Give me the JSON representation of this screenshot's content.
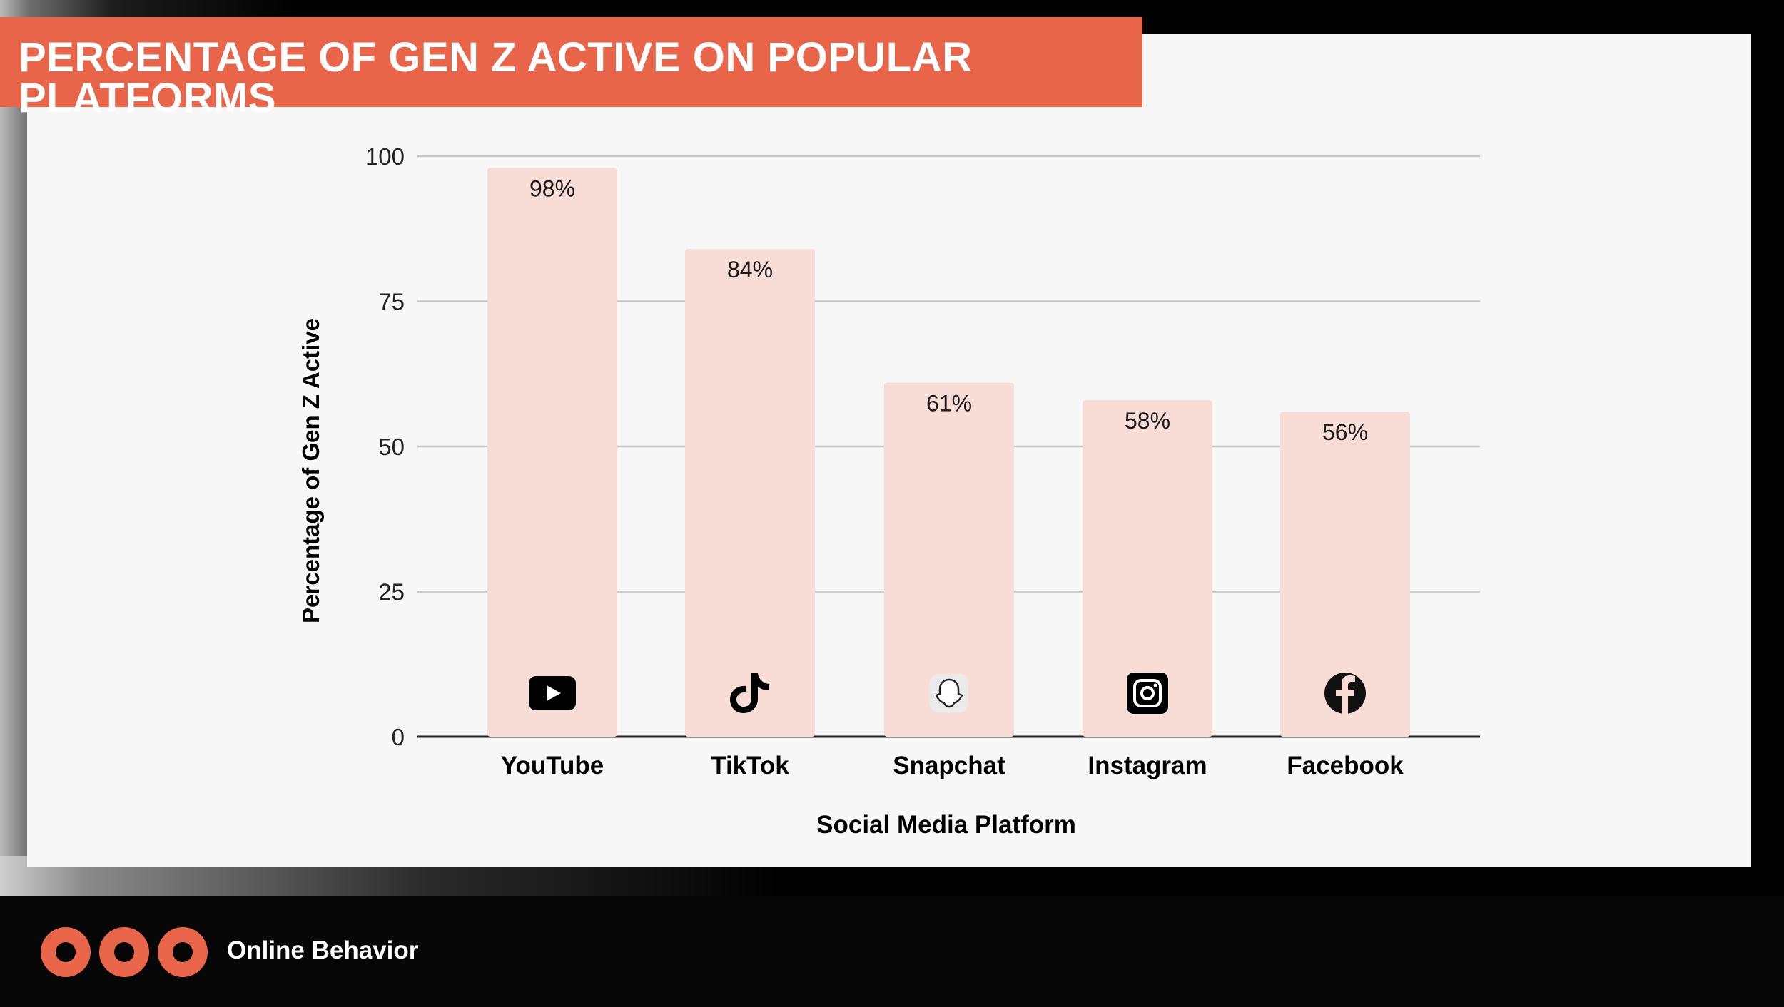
{
  "slide": {
    "title": "PERCENTAGE OF GEN Z ACTIVE ON POPULAR PLATFORMS",
    "footer_label": "Online Behavior",
    "accent_color": "#e8654a"
  },
  "chart_data": {
    "type": "bar",
    "categories": [
      "YouTube",
      "TikTok",
      "Snapchat",
      "Instagram",
      "Facebook"
    ],
    "values": [
      98,
      84,
      61,
      58,
      56
    ],
    "data_labels": [
      "98%",
      "84%",
      "61%",
      "58%",
      "56%"
    ],
    "icons": [
      "youtube-icon",
      "tiktok-icon",
      "snapchat-icon",
      "instagram-icon",
      "facebook-icon"
    ],
    "xlabel": "Social Media Platform",
    "ylabel": "Percentage of Gen Z Active",
    "ylim": [
      0,
      100
    ],
    "yticks": [
      0,
      25,
      50,
      75,
      100
    ],
    "grid": true,
    "bar_color": "#f8dcd6"
  }
}
